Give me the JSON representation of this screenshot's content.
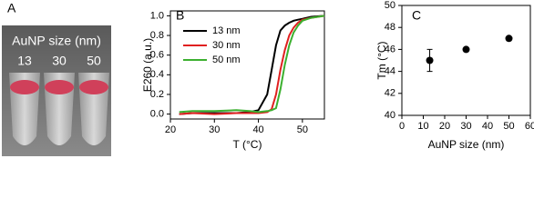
{
  "photo": {
    "panel_label": "A",
    "caption": "AuNP size (nm)",
    "sizes": [
      "13",
      "30",
      "50"
    ]
  },
  "chart_data": [
    {
      "type": "line",
      "panel_label": "B",
      "xlabel": "T (°C)",
      "ylabel": "E260 (a.u.)",
      "x": [
        22,
        25,
        30,
        35,
        38,
        40,
        42,
        43,
        44,
        45,
        46,
        47,
        48,
        49,
        50,
        52,
        55
      ],
      "series": [
        {
          "name": "13 nm",
          "color": "#000000",
          "values": [
            0,
            0.01,
            0.01,
            0.01,
            0.02,
            0.04,
            0.2,
            0.45,
            0.7,
            0.85,
            0.9,
            0.93,
            0.95,
            0.96,
            0.97,
            0.99,
            1.0
          ]
        },
        {
          "name": "30 nm",
          "color": "#e02020",
          "values": [
            0,
            0.01,
            0,
            0.01,
            0.01,
            0.01,
            0.02,
            0.05,
            0.2,
            0.45,
            0.65,
            0.8,
            0.88,
            0.93,
            0.96,
            0.98,
            1.0
          ]
        },
        {
          "name": "50 nm",
          "color": "#3cb030",
          "values": [
            0.02,
            0.03,
            0.03,
            0.04,
            0.03,
            0.02,
            0.03,
            0.04,
            0.06,
            0.25,
            0.5,
            0.7,
            0.83,
            0.9,
            0.95,
            0.98,
            1.0
          ]
        }
      ],
      "xlim": [
        20,
        55
      ],
      "xticks": [
        20,
        30,
        40,
        50
      ],
      "ylim": [
        -0.05,
        1.05
      ],
      "yticks": [
        {
          "value": 0,
          "label": "0.0"
        },
        0.2,
        0.4,
        0.6,
        0.8,
        {
          "value": 1,
          "label": "1.0"
        }
      ],
      "legend": "upper left"
    },
    {
      "type": "scatter",
      "panel_label": "C",
      "xlabel": "AuNP size (nm)",
      "ylabel": "Tm (°C)",
      "x": [
        13,
        30,
        50
      ],
      "values": [
        45,
        46,
        47
      ],
      "errors": [
        1,
        null,
        null
      ],
      "color": "#000000",
      "xlim": [
        0,
        60
      ],
      "xticks": [
        0,
        10,
        20,
        30,
        40,
        50,
        60
      ],
      "ylim": [
        40,
        50
      ],
      "yticks": [
        40,
        42,
        44,
        46,
        48,
        50
      ]
    }
  ]
}
